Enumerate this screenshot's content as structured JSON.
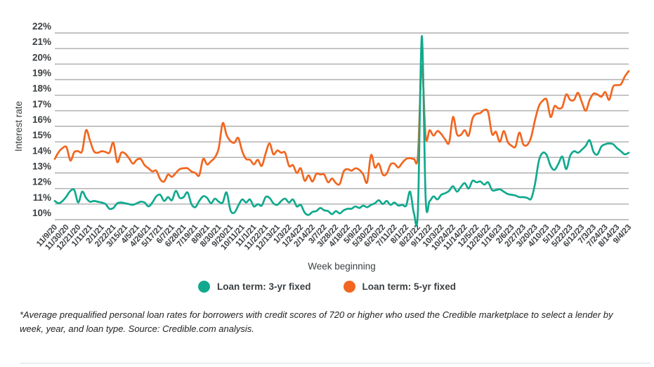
{
  "chart_data": {
    "type": "line",
    "title": "",
    "xlabel": "Week beginning",
    "ylabel": "Interest rate",
    "ylim": [
      10,
      22
    ],
    "grid": "horizontal",
    "legend_position": "bottom",
    "y_ticks": [
      "22%",
      "21%",
      "20%",
      "19%",
      "18%",
      "17%",
      "16%",
      "15%",
      "14%",
      "13%",
      "12%",
      "11%",
      "10%"
    ],
    "x_tick_interval_weeks": 3,
    "x_tick_labels": [
      "11/9/20",
      "11/30/20",
      "12/21/20",
      "1/11/21",
      "2/1/21",
      "2/22/21",
      "3/15/21",
      "4/5/21",
      "4/26/21",
      "5/17/21",
      "6/7/21",
      "6/28/21",
      "7/19/21",
      "8/9/21",
      "8/30/21",
      "9/20/21",
      "10/11/21",
      "11/1/21",
      "11/22/21",
      "12/13/21",
      "1/3/22",
      "1/24/22",
      "2/14/22",
      "3/7/22",
      "3/28/22",
      "4/18/22",
      "5/9/22",
      "5/30/22",
      "6/20/22",
      "7/11/22",
      "8/1/22",
      "8/22/22",
      "9/12/22",
      "10/3/22",
      "10/24/22",
      "11/14/22",
      "12/5/22",
      "12/26/22",
      "1/16/23",
      "2/6/23",
      "2/27/23",
      "3/20/23",
      "4/10/23",
      "5/1/23",
      "5/22/23",
      "6/12/23",
      "7/3/23",
      "7/24/23",
      "8/14/23",
      "9/4/23"
    ],
    "series": [
      {
        "name": "Loan term: 5-yr fixed",
        "color": "#F2661F",
        "values": [
          13.9,
          14.35,
          14.6,
          14.65,
          13.8,
          14.35,
          14.4,
          14.4,
          15.75,
          15.1,
          14.4,
          14.3,
          14.4,
          14.35,
          14.3,
          14.95,
          13.7,
          14.3,
          14.25,
          13.95,
          13.6,
          13.85,
          13.9,
          13.5,
          13.3,
          13.1,
          13.15,
          12.6,
          12.45,
          12.9,
          12.75,
          13.0,
          13.25,
          13.3,
          13.3,
          13.1,
          13.0,
          12.85,
          13.9,
          13.55,
          13.75,
          14.0,
          14.6,
          16.2,
          15.45,
          15.05,
          14.95,
          15.25,
          14.4,
          13.9,
          13.85,
          13.55,
          13.85,
          13.45,
          14.25,
          14.9,
          14.2,
          14.45,
          14.3,
          14.3,
          13.45,
          13.5,
          13.0,
          13.3,
          12.5,
          12.85,
          12.45,
          12.95,
          12.9,
          12.9,
          12.4,
          12.65,
          12.35,
          12.3,
          13.1,
          13.25,
          13.15,
          13.3,
          13.2,
          12.9,
          12.4,
          14.15,
          13.35,
          13.6,
          12.9,
          12.95,
          13.55,
          13.6,
          13.35,
          13.65,
          13.9,
          13.95,
          13.9,
          14.1,
          19.9,
          15.3,
          15.75,
          15.4,
          15.7,
          15.5,
          15.15,
          14.95,
          16.6,
          15.5,
          15.45,
          15.75,
          15.4,
          16.5,
          16.8,
          16.85,
          17.05,
          16.9,
          15.5,
          15.65,
          15.0,
          15.7,
          15.0,
          14.75,
          14.7,
          15.6,
          14.85,
          14.8,
          15.3,
          16.4,
          17.3,
          17.65,
          17.7,
          16.6,
          17.3,
          17.15,
          17.25,
          18.05,
          17.7,
          17.7,
          18.15,
          17.55,
          17.0,
          17.7,
          18.1,
          18.05,
          17.9,
          18.2,
          17.7,
          18.55,
          18.65,
          18.7,
          19.2,
          19.55
        ]
      },
      {
        "name": "Loan term: 3-yr fixed",
        "color": "#10A98E",
        "values": [
          11.2,
          11.05,
          11.2,
          11.5,
          11.85,
          11.9,
          11.1,
          11.8,
          11.4,
          11.15,
          11.2,
          11.15,
          11.1,
          11.0,
          10.7,
          10.75,
          11.05,
          11.1,
          11.05,
          11.0,
          10.95,
          11.05,
          11.15,
          11.1,
          10.85,
          11.1,
          11.5,
          11.6,
          11.2,
          11.45,
          11.25,
          11.85,
          11.4,
          11.45,
          11.75,
          11.0,
          10.8,
          11.2,
          11.5,
          11.4,
          11.05,
          11.35,
          11.15,
          11.1,
          11.75,
          10.6,
          10.45,
          10.9,
          11.3,
          11.1,
          11.3,
          10.85,
          11.0,
          10.9,
          11.45,
          11.4,
          11.05,
          10.95,
          11.2,
          11.35,
          11.1,
          11.3,
          10.85,
          10.95,
          10.45,
          10.3,
          10.5,
          10.55,
          10.75,
          10.6,
          10.55,
          10.35,
          10.55,
          10.4,
          10.6,
          10.7,
          10.7,
          10.85,
          10.75,
          10.9,
          10.8,
          10.95,
          11.05,
          11.25,
          11.0,
          11.2,
          10.95,
          11.1,
          10.9,
          10.95,
          10.9,
          11.8,
          10.4,
          10.55,
          21.8,
          11.3,
          11.2,
          11.5,
          11.3,
          11.6,
          11.7,
          11.85,
          12.15,
          11.8,
          12.1,
          12.35,
          12.0,
          12.5,
          12.4,
          12.45,
          12.25,
          12.4,
          11.9,
          11.9,
          11.95,
          11.8,
          11.65,
          11.6,
          11.55,
          11.45,
          11.45,
          11.4,
          11.35,
          12.3,
          13.8,
          14.3,
          14.15,
          13.45,
          13.2,
          13.6,
          14.05,
          13.25,
          14.1,
          14.4,
          14.3,
          14.5,
          14.75,
          15.1,
          14.35,
          14.2,
          14.7,
          14.85,
          14.9,
          14.85,
          14.6,
          14.4,
          14.2,
          14.3
        ]
      }
    ]
  },
  "legend": {
    "items": [
      {
        "label": "Loan term: 3-yr fixed",
        "color": "#10A98E"
      },
      {
        "label": "Loan term: 5-yr fixed",
        "color": "#F2661F"
      }
    ]
  },
  "footnote": "*Average prequalified personal loan rates for borrowers with credit scores of 720 or higher who used the Credible marketplace to select a lender by week, year, and loan type. Source: Credible.com analysis."
}
